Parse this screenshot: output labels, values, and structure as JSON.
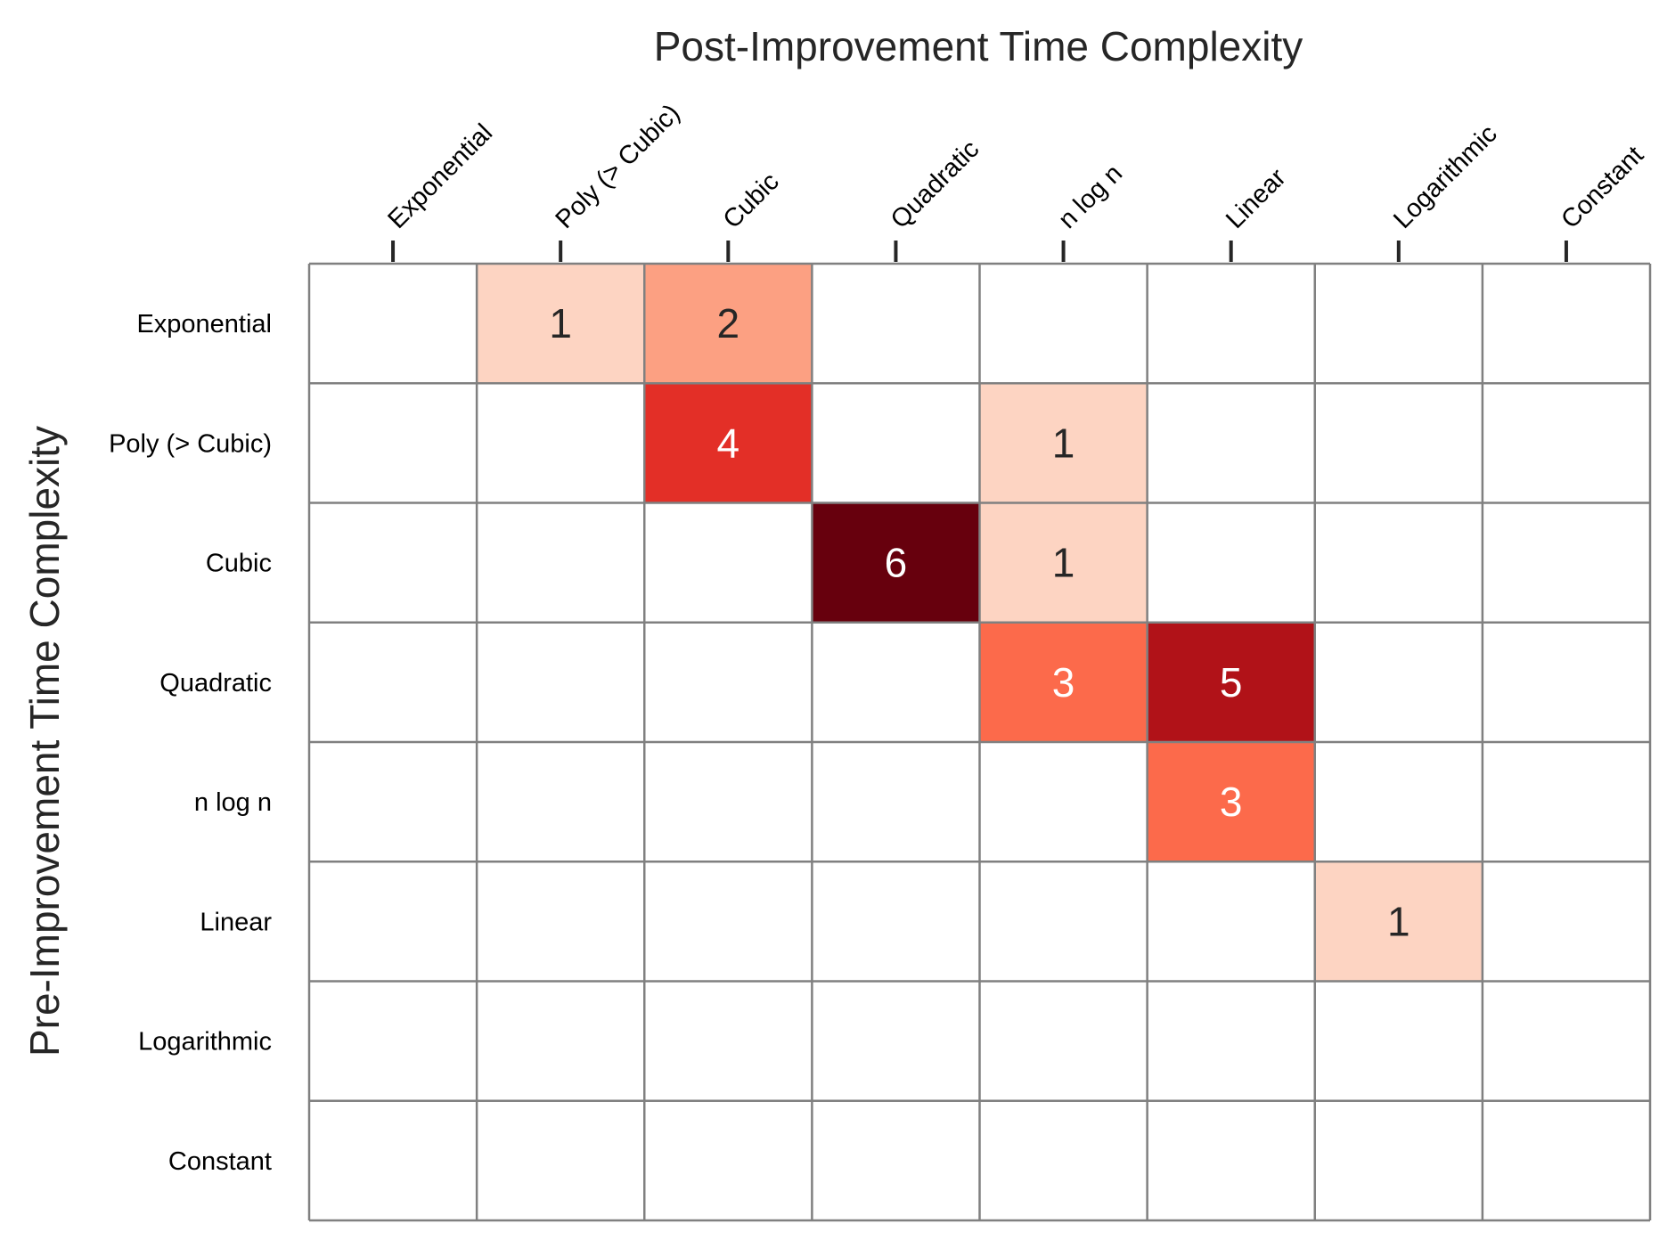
{
  "chart_data": {
    "type": "heatmap",
    "title": "",
    "xlabel": "Post-Improvement Time Complexity",
    "ylabel": "Pre-Improvement Time Complexity",
    "xlabel_position": "top",
    "x_categories": [
      "Exponential",
      "Poly (> Cubic)",
      "Cubic",
      "Quadratic",
      "n log n",
      "Linear",
      "Logarithmic",
      "Constant"
    ],
    "y_categories": [
      "Exponential",
      "Poly (> Cubic)",
      "Cubic",
      "Quadratic",
      "n log n",
      "Linear",
      "Logarithmic",
      "Constant"
    ],
    "values": [
      [
        0,
        1,
        2,
        0,
        0,
        0,
        0,
        0
      ],
      [
        0,
        0,
        4,
        0,
        1,
        0,
        0,
        0
      ],
      [
        0,
        0,
        0,
        6,
        1,
        0,
        0,
        0
      ],
      [
        0,
        0,
        0,
        0,
        3,
        5,
        0,
        0
      ],
      [
        0,
        0,
        0,
        0,
        0,
        3,
        0,
        0
      ],
      [
        0,
        0,
        0,
        0,
        0,
        0,
        1,
        0
      ],
      [
        0,
        0,
        0,
        0,
        0,
        0,
        0,
        0
      ],
      [
        0,
        0,
        0,
        0,
        0,
        0,
        0,
        0
      ]
    ],
    "zero_cells_annotated": false,
    "colormap": "Reds",
    "color_scale": [
      {
        "value": 1,
        "color": "#fdd4c2"
      },
      {
        "value": 2,
        "color": "#fca082"
      },
      {
        "value": 3,
        "color": "#fc6a4b"
      },
      {
        "value": 4,
        "color": "#e32f27"
      },
      {
        "value": 5,
        "color": "#b11218"
      },
      {
        "value": 6,
        "color": "#67000d"
      }
    ],
    "zero_color": "#ffffff",
    "grid": true,
    "grid_color": "#808080",
    "legend": "none"
  }
}
